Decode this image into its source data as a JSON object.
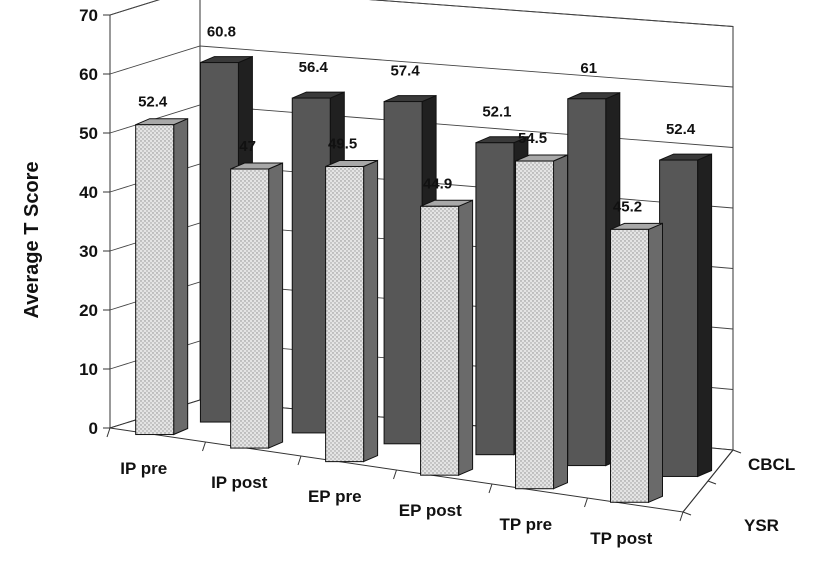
{
  "chart_data": {
    "type": "bar",
    "subtype": "3d-clustered-depth",
    "title": "",
    "xlabel": "",
    "ylabel": "Average T Score",
    "ylim": [
      0,
      70
    ],
    "yticks": [
      "0",
      "10",
      "20",
      "30",
      "40",
      "50",
      "60",
      "70"
    ],
    "categories": [
      "IP pre",
      "IP post",
      "EP pre",
      "EP post",
      "TP pre",
      "TP post"
    ],
    "series": [
      {
        "name": "YSR",
        "values": [
          52.4,
          47,
          49.5,
          44.9,
          54.5,
          45.2
        ],
        "labels": [
          "52.4",
          "47",
          "49.5",
          "44.9",
          "54.5",
          "45.2"
        ],
        "color": "#d9d9d9",
        "pattern": "dotted"
      },
      {
        "name": "CBCL",
        "values": [
          60.8,
          56.4,
          57.4,
          52.1,
          61,
          52.4
        ],
        "labels": [
          "60.8",
          "56.4",
          "57.4",
          "52.1",
          "61",
          "52.4"
        ],
        "color": "#555555"
      }
    ],
    "grid": true,
    "legend": "none"
  }
}
